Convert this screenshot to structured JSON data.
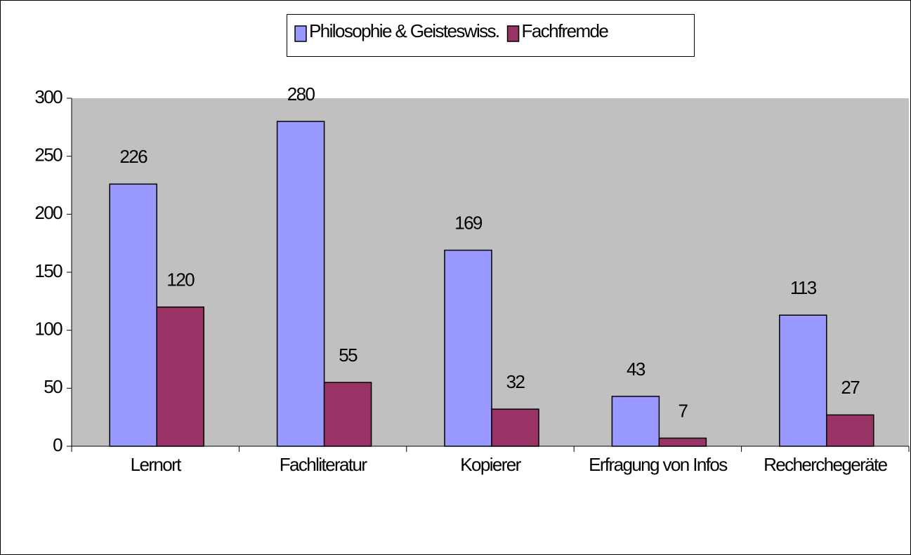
{
  "chart_data": {
    "type": "bar",
    "categories": [
      "Lernort",
      "Fachliteratur",
      "Kopierer",
      "Erfragung von Infos",
      "Recherchegeräte"
    ],
    "series": [
      {
        "name": "Philosophie & Geisteswiss.",
        "color": "#9999ff",
        "values": [
          226,
          280,
          169,
          43,
          113
        ]
      },
      {
        "name": "Fachfremde",
        "color": "#993366",
        "values": [
          120,
          55,
          32,
          7,
          27
        ]
      }
    ],
    "ylim": [
      0,
      300
    ],
    "yticks": [
      0,
      50,
      100,
      150,
      200,
      250,
      300
    ],
    "grid": false,
    "legend": "top"
  }
}
